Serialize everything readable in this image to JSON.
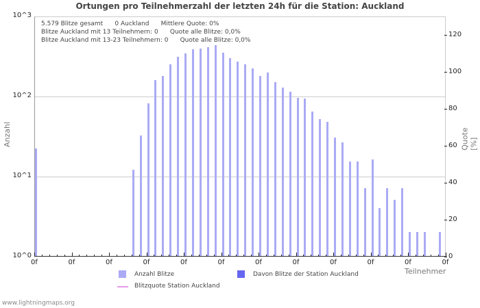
{
  "title": "Ortungen pro Teilnehmerzahl der letzten 24h für die Station: Auckland",
  "info_lines": [
    "5.579 Blitze gesamt      0 Auckland      Mittlere Quote: 0%",
    "Blitze Auckland mit 13 Teilnehmern: 0      Quote alle Blitze: 0,0%",
    "Blitze Auckland mit 13-23 Teilnehmern: 0      Quote alle Blitze: 0,0%"
  ],
  "y_left_label": "Anzahl",
  "y_right_label": "Quote [%]",
  "x_label": "Teilnehmer",
  "footer": "www.lightningmaps.org",
  "legend": {
    "anzahl": "Anzahl Blitze",
    "davon": "Davon Blitze der Station Auckland",
    "quote": "Blitzquote Station Auckland"
  },
  "colors": {
    "bar": "#aaaaf5",
    "station_bar": "#6666f0",
    "quote_line": "#e79be7"
  },
  "chart_data": {
    "type": "bar",
    "title": "Ortungen pro Teilnehmerzahl der letzten 24h für die Station: Auckland",
    "xlabel": "Teilnehmer",
    "ylabel": "Anzahl",
    "ylabel_right": "Quote [%]",
    "y_scale": "log",
    "ylim": [
      1,
      1000
    ],
    "y_ticks": [
      "10^0",
      "10^1",
      "10^2",
      "10^3"
    ],
    "y_right_ticks": [
      "0",
      "20",
      "40",
      "60",
      "80",
      "100",
      "120"
    ],
    "y_right_lim": [
      0,
      130
    ],
    "x_tick_labels": [
      "0f",
      "0f",
      "0f",
      "0f",
      "0f",
      "0f",
      "0f",
      "0f",
      "0f",
      "0f",
      "0f",
      "0f"
    ],
    "grid": true,
    "legend_position": "bottom",
    "series": [
      {
        "name": "Anzahl Blitze",
        "bars": [
          {
            "i": 0,
            "v": 22
          },
          {
            "i": 13,
            "v": 12
          },
          {
            "i": 14,
            "v": 32
          },
          {
            "i": 15,
            "v": 80
          },
          {
            "i": 16,
            "v": 158
          },
          {
            "i": 17,
            "v": 177
          },
          {
            "i": 18,
            "v": 247
          },
          {
            "i": 19,
            "v": 307
          },
          {
            "i": 20,
            "v": 340
          },
          {
            "i": 21,
            "v": 380
          },
          {
            "i": 22,
            "v": 388
          },
          {
            "i": 23,
            "v": 405
          },
          {
            "i": 24,
            "v": 430
          },
          {
            "i": 25,
            "v": 345
          },
          {
            "i": 26,
            "v": 295
          },
          {
            "i": 27,
            "v": 265
          },
          {
            "i": 28,
            "v": 247
          },
          {
            "i": 29,
            "v": 220
          },
          {
            "i": 30,
            "v": 177
          },
          {
            "i": 31,
            "v": 195
          },
          {
            "i": 32,
            "v": 148
          },
          {
            "i": 33,
            "v": 126
          },
          {
            "i": 34,
            "v": 112
          },
          {
            "i": 35,
            "v": 94
          },
          {
            "i": 36,
            "v": 92
          },
          {
            "i": 37,
            "v": 63
          },
          {
            "i": 38,
            "v": 51
          },
          {
            "i": 39,
            "v": 47
          },
          {
            "i": 40,
            "v": 30
          },
          {
            "i": 41,
            "v": 26
          },
          {
            "i": 42,
            "v": 15
          },
          {
            "i": 43,
            "v": 15
          },
          {
            "i": 44,
            "v": 7
          },
          {
            "i": 45,
            "v": 16
          },
          {
            "i": 46,
            "v": 4
          },
          {
            "i": 47,
            "v": 7
          },
          {
            "i": 48,
            "v": 5
          },
          {
            "i": 49,
            "v": 7
          },
          {
            "i": 50,
            "v": 2
          },
          {
            "i": 51,
            "v": 2
          },
          {
            "i": 52,
            "v": 2
          },
          {
            "i": 54,
            "v": 2
          }
        ]
      },
      {
        "name": "Davon Blitze der Station Auckland",
        "bars": []
      },
      {
        "name": "Blitzquote Station Auckland",
        "type": "line",
        "values": []
      }
    ]
  }
}
